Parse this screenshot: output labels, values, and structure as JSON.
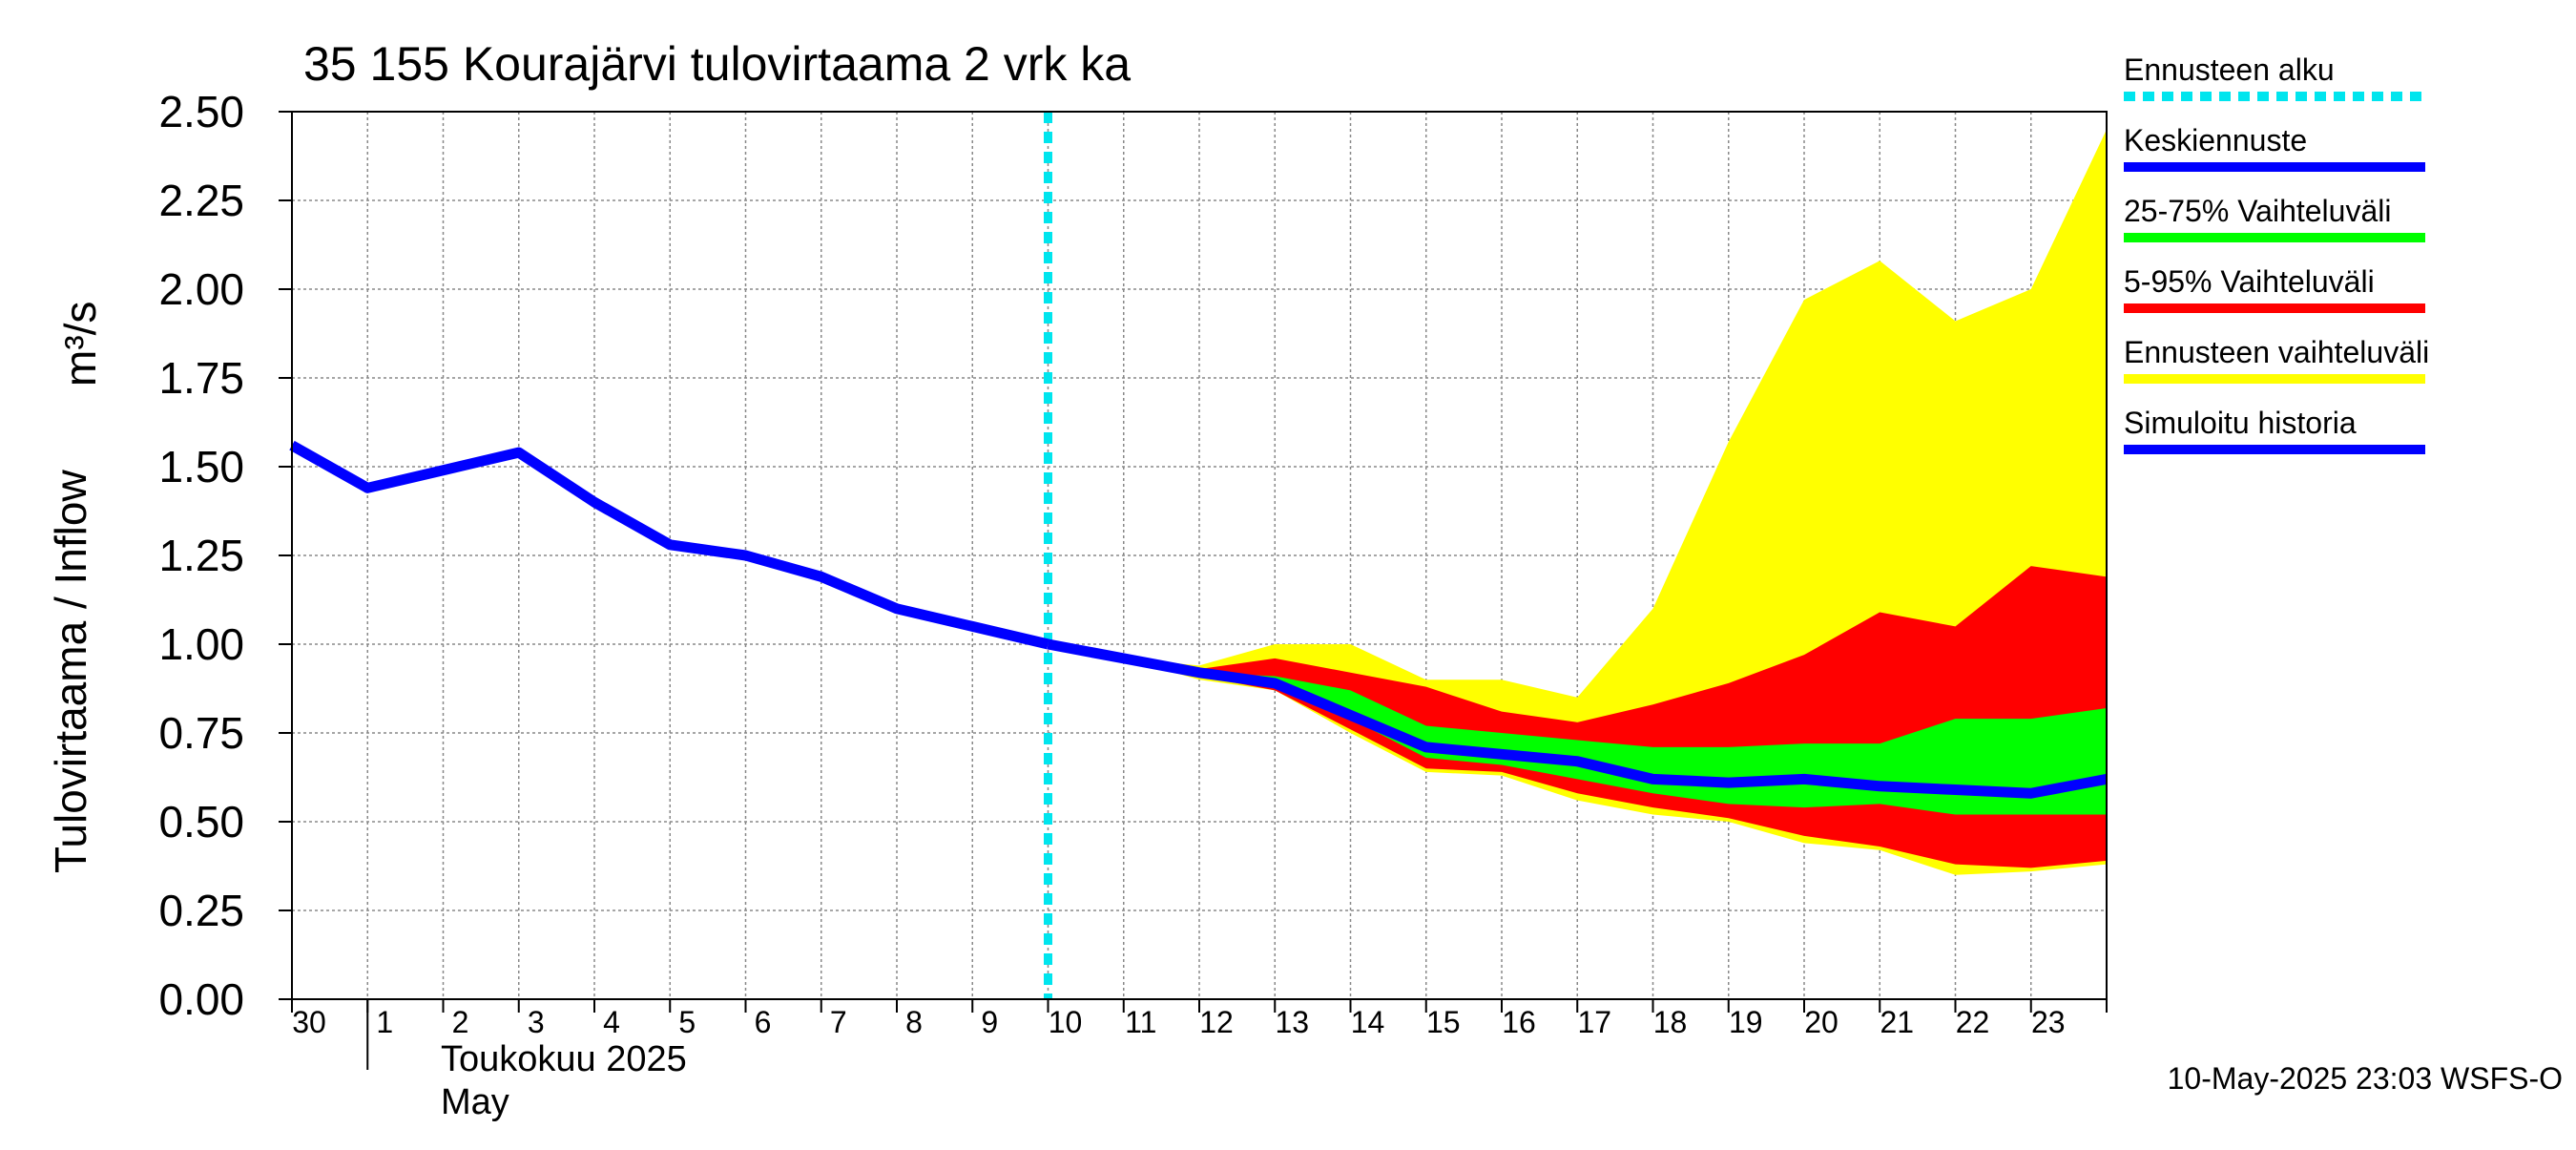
{
  "chart_data": {
    "type": "area",
    "title": "35 155 Kourajärvi tulovirtaama 2 vrk ka",
    "ylabel": "Tulovirtaama / Inflow",
    "yunit": "m³/s",
    "ylim": [
      0,
      2.5
    ],
    "yticks": [
      "0.00",
      "0.25",
      "0.50",
      "0.75",
      "1.00",
      "1.25",
      "1.50",
      "1.75",
      "2.00",
      "2.25",
      "2.50"
    ],
    "x_dates": [
      "2025-04-30",
      "2025-05-01",
      "2025-05-02",
      "2025-05-03",
      "2025-05-04",
      "2025-05-05",
      "2025-05-06",
      "2025-05-07",
      "2025-05-08",
      "2025-05-09",
      "2025-05-10",
      "2025-05-11",
      "2025-05-12",
      "2025-05-13",
      "2025-05-14",
      "2025-05-15",
      "2025-05-16",
      "2025-05-17",
      "2025-05-18",
      "2025-05-19",
      "2025-05-20",
      "2025-05-21",
      "2025-05-22",
      "2025-05-23",
      "2025-05-24"
    ],
    "xtick_labels": [
      "30",
      "1",
      "2",
      "3",
      "4",
      "5",
      "6",
      "7",
      "8",
      "9",
      "10",
      "11",
      "12",
      "13",
      "14",
      "15",
      "16",
      "17",
      "18",
      "19",
      "20",
      "21",
      "22",
      "23"
    ],
    "month_label_1": "Toukokuu  2025",
    "month_label_2": "May",
    "forecast_start": "2025-05-10",
    "grid": true,
    "legend_position": "right",
    "series": [
      {
        "name": "Simuloitu historia",
        "kind": "line",
        "color": "#0000ff",
        "points": [
          [
            "2025-04-30",
            1.56
          ],
          [
            "2025-05-01",
            1.44
          ],
          [
            "2025-05-02",
            1.49
          ],
          [
            "2025-05-03",
            1.54
          ],
          [
            "2025-05-04",
            1.4
          ],
          [
            "2025-05-05",
            1.28
          ],
          [
            "2025-05-06",
            1.25
          ],
          [
            "2025-05-07",
            1.19
          ],
          [
            "2025-05-08",
            1.1
          ],
          [
            "2025-05-09",
            1.05
          ],
          [
            "2025-05-10",
            1.0
          ]
        ]
      },
      {
        "name": "Keskiennuste",
        "kind": "line",
        "color": "#0000ff",
        "points": [
          [
            "2025-05-10",
            1.0
          ],
          [
            "2025-05-11",
            0.96
          ],
          [
            "2025-05-12",
            0.92
          ],
          [
            "2025-05-13",
            0.89
          ],
          [
            "2025-05-14",
            0.8
          ],
          [
            "2025-05-15",
            0.71
          ],
          [
            "2025-05-16",
            0.69
          ],
          [
            "2025-05-17",
            0.67
          ],
          [
            "2025-05-18",
            0.62
          ],
          [
            "2025-05-19",
            0.61
          ],
          [
            "2025-05-20",
            0.62
          ],
          [
            "2025-05-21",
            0.6
          ],
          [
            "2025-05-22",
            0.59
          ],
          [
            "2025-05-23",
            0.58
          ],
          [
            "2025-05-24",
            0.62
          ]
        ]
      },
      {
        "name": "Ennusteen vaihteluväli",
        "kind": "band",
        "color": "#ffff00",
        "x": [
          "2025-05-10",
          "2025-05-11",
          "2025-05-12",
          "2025-05-13",
          "2025-05-14",
          "2025-05-15",
          "2025-05-16",
          "2025-05-17",
          "2025-05-18",
          "2025-05-19",
          "2025-05-20",
          "2025-05-21",
          "2025-05-22",
          "2025-05-23",
          "2025-05-24"
        ],
        "low": [
          1.0,
          0.96,
          0.9,
          0.87,
          0.75,
          0.64,
          0.63,
          0.56,
          0.52,
          0.5,
          0.44,
          0.42,
          0.35,
          0.36,
          0.38
        ],
        "high": [
          1.0,
          0.96,
          0.94,
          1.0,
          1.0,
          0.9,
          0.9,
          0.85,
          1.1,
          1.57,
          1.97,
          2.08,
          1.91,
          2.0,
          2.45
        ]
      },
      {
        "name": "5-95% Vaihteluväli",
        "kind": "band",
        "color": "#ff0000",
        "x": [
          "2025-05-10",
          "2025-05-11",
          "2025-05-12",
          "2025-05-13",
          "2025-05-14",
          "2025-05-15",
          "2025-05-16",
          "2025-05-17",
          "2025-05-18",
          "2025-05-19",
          "2025-05-20",
          "2025-05-21",
          "2025-05-22",
          "2025-05-23",
          "2025-05-24"
        ],
        "low": [
          1.0,
          0.96,
          0.91,
          0.87,
          0.76,
          0.65,
          0.64,
          0.58,
          0.54,
          0.51,
          0.46,
          0.43,
          0.38,
          0.37,
          0.39
        ],
        "high": [
          1.0,
          0.96,
          0.93,
          0.96,
          0.92,
          0.88,
          0.81,
          0.78,
          0.83,
          0.89,
          0.97,
          1.09,
          1.05,
          1.22,
          1.19
        ]
      },
      {
        "name": "25-75% Vaihteluväli",
        "kind": "band",
        "color": "#00ff00",
        "x": [
          "2025-05-10",
          "2025-05-11",
          "2025-05-12",
          "2025-05-13",
          "2025-05-14",
          "2025-05-15",
          "2025-05-16",
          "2025-05-17",
          "2025-05-18",
          "2025-05-19",
          "2025-05-20",
          "2025-05-21",
          "2025-05-22",
          "2025-05-23",
          "2025-05-24"
        ],
        "low": [
          1.0,
          0.96,
          0.92,
          0.88,
          0.79,
          0.68,
          0.66,
          0.62,
          0.58,
          0.55,
          0.54,
          0.55,
          0.52,
          0.52,
          0.52
        ],
        "high": [
          1.0,
          0.96,
          0.92,
          0.91,
          0.87,
          0.77,
          0.75,
          0.73,
          0.71,
          0.71,
          0.72,
          0.72,
          0.79,
          0.79,
          0.82
        ]
      }
    ],
    "legend": [
      {
        "label": "Ennusteen alku",
        "color": "#00e5ee",
        "style": "dotted"
      },
      {
        "label": "Keskiennuste",
        "color": "#0000ff",
        "style": "solid"
      },
      {
        "label": "25-75% Vaihteluväli",
        "color": "#00ff00",
        "style": "solid"
      },
      {
        "label": "5-95% Vaihteluväli",
        "color": "#ff0000",
        "style": "solid"
      },
      {
        "label": "Ennusteen vaihteluväli",
        "color": "#ffff00",
        "style": "solid"
      },
      {
        "label": "Simuloitu historia",
        "color": "#0000ff",
        "style": "solid"
      }
    ],
    "footer": "10-May-2025 23:03 WSFS-O"
  }
}
